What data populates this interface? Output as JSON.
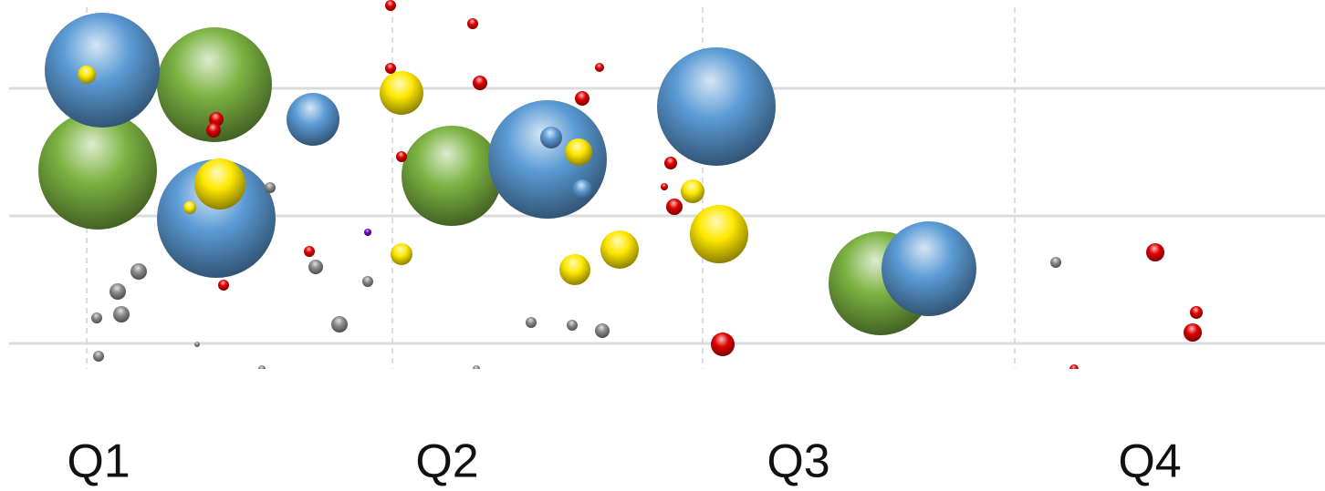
{
  "chart_data": {
    "type": "bubble",
    "xlim": [
      0,
      1452
    ],
    "ylim": [
      0,
      405
    ],
    "xticks": [
      {
        "value": 108,
        "label": "Q1"
      },
      {
        "value": 490,
        "label": "Q2"
      },
      {
        "value": 875,
        "label": "Q3"
      },
      {
        "value": 1260,
        "label": "Q4"
      }
    ],
    "xgrid": [
      95,
      430,
      770,
      1112
    ],
    "yticks": [
      28,
      168,
      308
    ],
    "grid": true,
    "series": [
      {
        "color": "#7cb342",
        "x": [
          235,
          107,
          495,
          965
        ],
        "values": [
          312,
          218,
          212,
          94
        ],
        "sizes": [
          63,
          65,
          55,
          57
        ]
      },
      {
        "color": "#5b9bd5",
        "x": [
          112,
          237,
          343,
          600,
          785,
          1018,
          604,
          638
        ],
        "values": [
          328,
          165,
          274,
          230,
          288,
          110,
          254,
          197
        ],
        "sizes": [
          63,
          65,
          29,
          65,
          65,
          52,
          12,
          11
        ]
      },
      {
        "color": "#ffe800",
        "x": [
          95,
          241,
          208,
          440,
          634,
          440,
          759,
          788,
          679,
          630
        ],
        "values": [
          323,
          203,
          177,
          303,
          238,
          126,
          195,
          148,
          131,
          109
        ],
        "sizes": [
          10,
          28,
          7,
          24,
          15,
          12,
          13,
          32,
          21,
          17
        ]
      },
      {
        "color": "#8a8a8a",
        "x": [
          296,
          152,
          129,
          133,
          106,
          108,
          216,
          346,
          403,
          372,
          582,
          627,
          660,
          1157,
          522,
          287
        ],
        "values": [
          199,
          107,
          85,
          60,
          56,
          14,
          27,
          112,
          96,
          49,
          51,
          48,
          42,
          117,
          0,
          0
        ],
        "sizes": [
          6,
          9,
          9,
          9,
          6,
          6,
          3,
          8,
          6,
          9,
          6,
          6,
          8,
          6,
          4,
          4
        ]
      },
      {
        "color": "#e00000",
        "x": [
          428,
          518,
          428,
          526,
          657,
          638,
          440,
          237,
          234,
          735,
          728,
          739,
          339,
          245,
          792,
          1266,
          1311,
          1307,
          1177
        ],
        "values": [
          399,
          379,
          330,
          314,
          331,
          297,
          233,
          274,
          262,
          226,
          200,
          178,
          129,
          92,
          27,
          128,
          62,
          40,
          0
        ],
        "sizes": [
          6,
          6,
          6,
          8,
          5,
          8,
          6,
          8,
          8,
          7,
          4,
          9,
          6,
          6,
          13,
          10,
          7,
          10,
          5
        ]
      },
      {
        "color": "#6a00c8",
        "x": [
          403
        ],
        "values": [
          150
        ],
        "sizes": [
          4
        ]
      }
    ]
  }
}
